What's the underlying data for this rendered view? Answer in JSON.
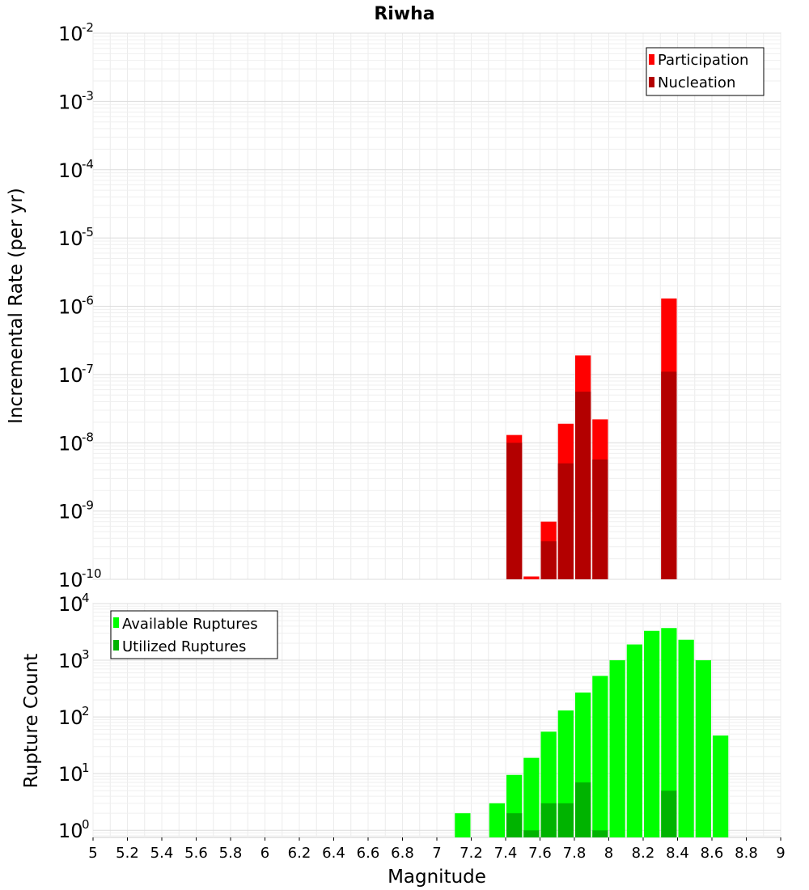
{
  "chart_data": [
    {
      "type": "bar",
      "title": "Riwha",
      "ylabel": "Incremental Rate (per yr)",
      "xlabel": "",
      "yscale": "log",
      "ylim": [
        1e-10,
        0.01
      ],
      "xlim": [
        5,
        9
      ],
      "bar_width": 0.1,
      "grid": true,
      "legend_position": "top-right",
      "y_ticks": [
        {
          "base": "10",
          "exp": "-10",
          "value": 1e-10
        },
        {
          "base": "10",
          "exp": "-9",
          "value": 1e-09
        },
        {
          "base": "10",
          "exp": "-8",
          "value": 1e-08
        },
        {
          "base": "10",
          "exp": "-7",
          "value": 1e-07
        },
        {
          "base": "10",
          "exp": "-6",
          "value": 1e-06
        },
        {
          "base": "10",
          "exp": "-5",
          "value": 1e-05
        },
        {
          "base": "10",
          "exp": "-4",
          "value": 0.0001
        },
        {
          "base": "10",
          "exp": "-3",
          "value": 0.001
        },
        {
          "base": "10",
          "exp": "-2",
          "value": 0.01
        }
      ],
      "series": [
        {
          "name": "Participation",
          "color": "#ff0000",
          "points": [
            {
              "x": 7.45,
              "y": 1.3e-08
            },
            {
              "x": 7.55,
              "y": 1.1e-10
            },
            {
              "x": 7.65,
              "y": 7e-10
            },
            {
              "x": 7.75,
              "y": 1.9e-08
            },
            {
              "x": 7.85,
              "y": 1.9e-07
            },
            {
              "x": 7.95,
              "y": 2.2e-08
            },
            {
              "x": 8.35,
              "y": 1.3e-06
            }
          ]
        },
        {
          "name": "Nucleation",
          "color": "#b30000",
          "points": [
            {
              "x": 7.45,
              "y": 1e-08
            },
            {
              "x": 7.65,
              "y": 3.6e-10
            },
            {
              "x": 7.75,
              "y": 5e-09
            },
            {
              "x": 7.85,
              "y": 5.6e-08
            },
            {
              "x": 7.95,
              "y": 5.7e-09
            },
            {
              "x": 8.35,
              "y": 1.1e-07
            }
          ]
        }
      ]
    },
    {
      "type": "bar",
      "title": "",
      "ylabel": "Rupture Count",
      "xlabel": "Magnitude",
      "yscale": "log",
      "ylim": [
        0.75,
        10000.0
      ],
      "xlim": [
        5,
        9
      ],
      "bar_width": 0.1,
      "grid": true,
      "legend_position": "top-left",
      "x_ticks": [
        "5",
        "5.2",
        "5.4",
        "5.6",
        "5.8",
        "6",
        "6.2",
        "6.4",
        "6.6",
        "6.8",
        "7",
        "7.2",
        "7.4",
        "7.6",
        "7.8",
        "8",
        "8.2",
        "8.4",
        "8.6",
        "8.8",
        "9"
      ],
      "y_ticks": [
        {
          "base": "10",
          "exp": "0",
          "value": 1
        },
        {
          "base": "10",
          "exp": "1",
          "value": 10
        },
        {
          "base": "10",
          "exp": "2",
          "value": 100
        },
        {
          "base": "10",
          "exp": "3",
          "value": 1000
        },
        {
          "base": "10",
          "exp": "4",
          "value": 10000
        }
      ],
      "series": [
        {
          "name": "Available Ruptures",
          "color": "#00ff00",
          "points": [
            {
              "x": 7.15,
              "y": 2
            },
            {
              "x": 7.35,
              "y": 3
            },
            {
              "x": 7.45,
              "y": 9.5
            },
            {
              "x": 7.55,
              "y": 19
            },
            {
              "x": 7.65,
              "y": 55
            },
            {
              "x": 7.75,
              "y": 130
            },
            {
              "x": 7.85,
              "y": 270
            },
            {
              "x": 7.95,
              "y": 530
            },
            {
              "x": 8.05,
              "y": 1000
            },
            {
              "x": 8.15,
              "y": 1900
            },
            {
              "x": 8.25,
              "y": 3300
            },
            {
              "x": 8.35,
              "y": 3700
            },
            {
              "x": 8.45,
              "y": 2300
            },
            {
              "x": 8.55,
              "y": 1000
            },
            {
              "x": 8.65,
              "y": 47
            }
          ]
        },
        {
          "name": "Utilized Ruptures",
          "color": "#00b300",
          "points": [
            {
              "x": 7.45,
              "y": 2
            },
            {
              "x": 7.55,
              "y": 1
            },
            {
              "x": 7.65,
              "y": 3
            },
            {
              "x": 7.75,
              "y": 3
            },
            {
              "x": 7.85,
              "y": 7
            },
            {
              "x": 7.95,
              "y": 1
            },
            {
              "x": 8.35,
              "y": 5
            }
          ]
        }
      ]
    }
  ]
}
